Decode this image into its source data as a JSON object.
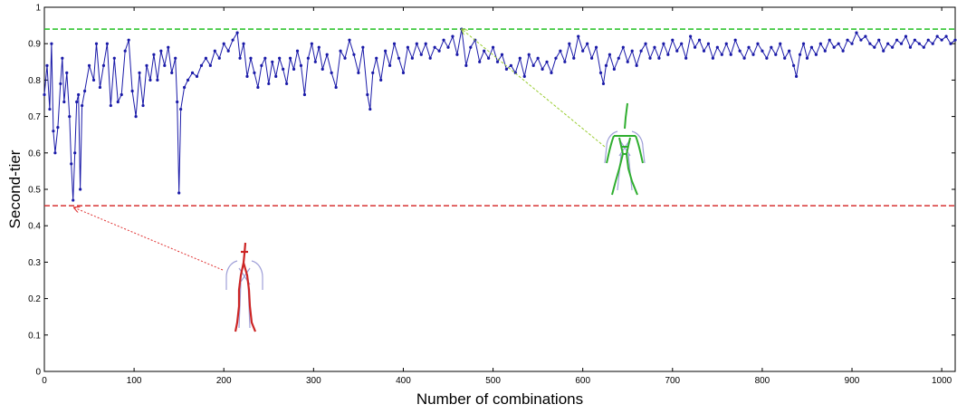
{
  "chart_data": {
    "type": "line",
    "title": "",
    "xlabel": "Number of combinations",
    "ylabel": "Second-tier",
    "xlim": [
      0,
      1015
    ],
    "ylim": [
      0,
      1
    ],
    "x_ticks": [
      0,
      100,
      200,
      300,
      400,
      500,
      600,
      700,
      800,
      900,
      1000
    ],
    "y_ticks": [
      0,
      0.1,
      0.2,
      0.3,
      0.4,
      0.5,
      0.6,
      0.7,
      0.8,
      0.9,
      1
    ],
    "x_tick_labels": [
      "0",
      "100",
      "200",
      "300",
      "400",
      "500",
      "600",
      "700",
      "800",
      "900",
      "1000"
    ],
    "y_tick_labels": [
      "0",
      "0.1",
      "0.2",
      "0.3",
      "0.4",
      "0.5",
      "0.6",
      "0.7",
      "0.8",
      "0.9",
      "1"
    ],
    "grid": false,
    "series": [
      {
        "color": "#1a1aa8",
        "marker": "dot",
        "values": [
          [
            0,
            0.76
          ],
          [
            3,
            0.84
          ],
          [
            6,
            0.72
          ],
          [
            8,
            0.9
          ],
          [
            10,
            0.66
          ],
          [
            12,
            0.6
          ],
          [
            15,
            0.67
          ],
          [
            18,
            0.79
          ],
          [
            20,
            0.86
          ],
          [
            22,
            0.74
          ],
          [
            25,
            0.82
          ],
          [
            28,
            0.7
          ],
          [
            30,
            0.57
          ],
          [
            32,
            0.47
          ],
          [
            34,
            0.6
          ],
          [
            36,
            0.74
          ],
          [
            38,
            0.76
          ],
          [
            40,
            0.5
          ],
          [
            42,
            0.73
          ],
          [
            45,
            0.77
          ],
          [
            50,
            0.84
          ],
          [
            55,
            0.8
          ],
          [
            58,
            0.9
          ],
          [
            62,
            0.78
          ],
          [
            66,
            0.84
          ],
          [
            70,
            0.9
          ],
          [
            74,
            0.73
          ],
          [
            78,
            0.86
          ],
          [
            82,
            0.74
          ],
          [
            86,
            0.76
          ],
          [
            90,
            0.88
          ],
          [
            94,
            0.91
          ],
          [
            98,
            0.77
          ],
          [
            102,
            0.7
          ],
          [
            106,
            0.82
          ],
          [
            110,
            0.73
          ],
          [
            114,
            0.84
          ],
          [
            118,
            0.8
          ],
          [
            122,
            0.87
          ],
          [
            126,
            0.8
          ],
          [
            130,
            0.88
          ],
          [
            134,
            0.84
          ],
          [
            138,
            0.89
          ],
          [
            142,
            0.82
          ],
          [
            146,
            0.86
          ],
          [
            148,
            0.74
          ],
          [
            150,
            0.49
          ],
          [
            152,
            0.72
          ],
          [
            156,
            0.78
          ],
          [
            160,
            0.8
          ],
          [
            165,
            0.82
          ],
          [
            170,
            0.81
          ],
          [
            175,
            0.84
          ],
          [
            180,
            0.86
          ],
          [
            185,
            0.84
          ],
          [
            190,
            0.88
          ],
          [
            195,
            0.86
          ],
          [
            200,
            0.9
          ],
          [
            205,
            0.88
          ],
          [
            210,
            0.91
          ],
          [
            215,
            0.93
          ],
          [
            218,
            0.86
          ],
          [
            222,
            0.9
          ],
          [
            226,
            0.81
          ],
          [
            230,
            0.86
          ],
          [
            234,
            0.82
          ],
          [
            238,
            0.78
          ],
          [
            242,
            0.84
          ],
          [
            246,
            0.86
          ],
          [
            250,
            0.79
          ],
          [
            254,
            0.85
          ],
          [
            258,
            0.81
          ],
          [
            262,
            0.86
          ],
          [
            266,
            0.83
          ],
          [
            270,
            0.79
          ],
          [
            274,
            0.86
          ],
          [
            278,
            0.83
          ],
          [
            282,
            0.88
          ],
          [
            286,
            0.84
          ],
          [
            290,
            0.76
          ],
          [
            294,
            0.86
          ],
          [
            298,
            0.9
          ],
          [
            302,
            0.85
          ],
          [
            306,
            0.89
          ],
          [
            310,
            0.83
          ],
          [
            315,
            0.87
          ],
          [
            320,
            0.82
          ],
          [
            325,
            0.78
          ],
          [
            330,
            0.88
          ],
          [
            335,
            0.86
          ],
          [
            340,
            0.91
          ],
          [
            345,
            0.87
          ],
          [
            350,
            0.82
          ],
          [
            355,
            0.89
          ],
          [
            360,
            0.76
          ],
          [
            363,
            0.72
          ],
          [
            366,
            0.82
          ],
          [
            370,
            0.86
          ],
          [
            375,
            0.8
          ],
          [
            380,
            0.88
          ],
          [
            385,
            0.84
          ],
          [
            390,
            0.9
          ],
          [
            395,
            0.86
          ],
          [
            400,
            0.82
          ],
          [
            405,
            0.89
          ],
          [
            410,
            0.86
          ],
          [
            415,
            0.9
          ],
          [
            420,
            0.87
          ],
          [
            425,
            0.9
          ],
          [
            430,
            0.86
          ],
          [
            435,
            0.89
          ],
          [
            440,
            0.88
          ],
          [
            445,
            0.91
          ],
          [
            450,
            0.89
          ],
          [
            455,
            0.92
          ],
          [
            460,
            0.87
          ],
          [
            465,
            0.94
          ],
          [
            470,
            0.84
          ],
          [
            475,
            0.89
          ],
          [
            480,
            0.91
          ],
          [
            485,
            0.85
          ],
          [
            490,
            0.88
          ],
          [
            495,
            0.86
          ],
          [
            500,
            0.89
          ],
          [
            505,
            0.85
          ],
          [
            510,
            0.87
          ],
          [
            515,
            0.83
          ],
          [
            520,
            0.84
          ],
          [
            525,
            0.82
          ],
          [
            530,
            0.86
          ],
          [
            535,
            0.81
          ],
          [
            540,
            0.87
          ],
          [
            545,
            0.84
          ],
          [
            550,
            0.86
          ],
          [
            555,
            0.83
          ],
          [
            560,
            0.85
          ],
          [
            565,
            0.82
          ],
          [
            570,
            0.86
          ],
          [
            575,
            0.88
          ],
          [
            580,
            0.85
          ],
          [
            585,
            0.9
          ],
          [
            590,
            0.86
          ],
          [
            595,
            0.92
          ],
          [
            600,
            0.88
          ],
          [
            605,
            0.9
          ],
          [
            610,
            0.86
          ],
          [
            615,
            0.89
          ],
          [
            620,
            0.82
          ],
          [
            623,
            0.79
          ],
          [
            626,
            0.84
          ],
          [
            630,
            0.87
          ],
          [
            635,
            0.83
          ],
          [
            640,
            0.86
          ],
          [
            645,
            0.89
          ],
          [
            650,
            0.85
          ],
          [
            655,
            0.88
          ],
          [
            660,
            0.84
          ],
          [
            665,
            0.88
          ],
          [
            670,
            0.9
          ],
          [
            675,
            0.86
          ],
          [
            680,
            0.89
          ],
          [
            685,
            0.86
          ],
          [
            690,
            0.9
          ],
          [
            695,
            0.87
          ],
          [
            700,
            0.91
          ],
          [
            705,
            0.88
          ],
          [
            710,
            0.9
          ],
          [
            715,
            0.86
          ],
          [
            720,
            0.92
          ],
          [
            725,
            0.89
          ],
          [
            730,
            0.91
          ],
          [
            735,
            0.88
          ],
          [
            740,
            0.9
          ],
          [
            745,
            0.86
          ],
          [
            750,
            0.89
          ],
          [
            755,
            0.87
          ],
          [
            760,
            0.9
          ],
          [
            765,
            0.87
          ],
          [
            770,
            0.91
          ],
          [
            775,
            0.88
          ],
          [
            780,
            0.86
          ],
          [
            785,
            0.89
          ],
          [
            790,
            0.87
          ],
          [
            795,
            0.9
          ],
          [
            800,
            0.88
          ],
          [
            805,
            0.86
          ],
          [
            810,
            0.89
          ],
          [
            815,
            0.87
          ],
          [
            820,
            0.9
          ],
          [
            825,
            0.86
          ],
          [
            830,
            0.88
          ],
          [
            835,
            0.84
          ],
          [
            838,
            0.81
          ],
          [
            842,
            0.87
          ],
          [
            846,
            0.9
          ],
          [
            850,
            0.86
          ],
          [
            855,
            0.89
          ],
          [
            860,
            0.87
          ],
          [
            865,
            0.9
          ],
          [
            870,
            0.88
          ],
          [
            875,
            0.91
          ],
          [
            880,
            0.89
          ],
          [
            885,
            0.9
          ],
          [
            890,
            0.88
          ],
          [
            895,
            0.91
          ],
          [
            900,
            0.9
          ],
          [
            905,
            0.93
          ],
          [
            910,
            0.91
          ],
          [
            915,
            0.92
          ],
          [
            920,
            0.9
          ],
          [
            925,
            0.89
          ],
          [
            930,
            0.91
          ],
          [
            935,
            0.88
          ],
          [
            940,
            0.9
          ],
          [
            945,
            0.89
          ],
          [
            950,
            0.91
          ],
          [
            955,
            0.9
          ],
          [
            960,
            0.92
          ],
          [
            965,
            0.89
          ],
          [
            970,
            0.91
          ],
          [
            975,
            0.9
          ],
          [
            980,
            0.89
          ],
          [
            985,
            0.91
          ],
          [
            990,
            0.9
          ],
          [
            995,
            0.92
          ],
          [
            1000,
            0.91
          ],
          [
            1005,
            0.92
          ],
          [
            1010,
            0.9
          ],
          [
            1015,
            0.91
          ]
        ]
      }
    ],
    "reference_lines": [
      {
        "value": 0.94,
        "color": "#22c122",
        "style": "dashed"
      },
      {
        "value": 0.455,
        "color": "#d42020",
        "style": "dashed"
      }
    ],
    "annotations": [
      {
        "target": [
          465,
          0.94
        ],
        "color": "#9acd32",
        "figure": "green-skeleton-figure"
      },
      {
        "target": [
          33,
          0.45
        ],
        "color": "#e03030",
        "figure": "red-skeleton-figure"
      }
    ]
  }
}
